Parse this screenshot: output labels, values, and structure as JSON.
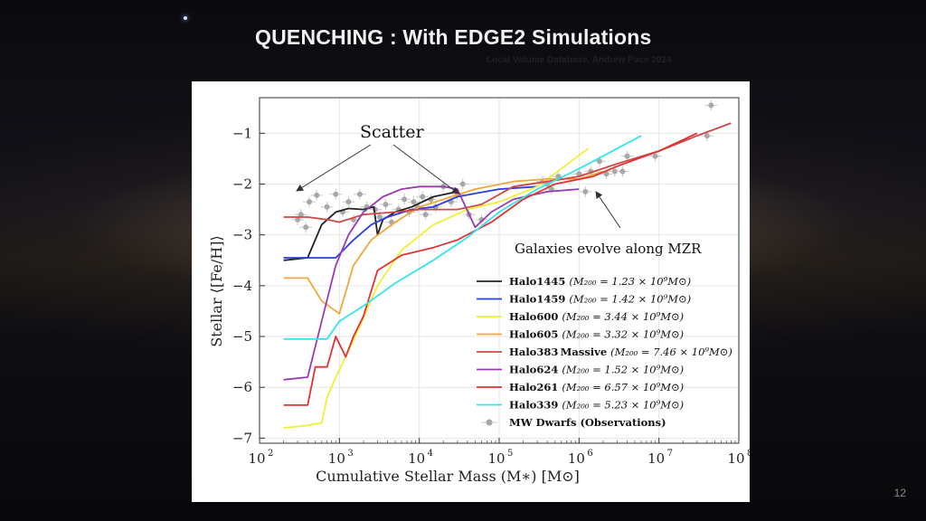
{
  "slide": {
    "title": "QUENCHING : With EDGE2 Simulations",
    "subtitle": "Local Volume Database, Andrew Pace 2024",
    "page_number": "12"
  },
  "chart_data": {
    "type": "line",
    "xlabel": "Cumulative Stellar Mass (M∗) [M⊙]",
    "ylabel": "Stellar ⟨[Fe/H]⟩",
    "xscale": "log",
    "xlim": [
      100,
      100000000
    ],
    "ylim": [
      -7.1,
      -0.3
    ],
    "xticks": [
      {
        "value": 100,
        "base": "10",
        "exp": "2"
      },
      {
        "value": 1000,
        "base": "10",
        "exp": "3"
      },
      {
        "value": 10000,
        "base": "10",
        "exp": "4"
      },
      {
        "value": 100000,
        "base": "10",
        "exp": "5"
      },
      {
        "value": 1000000,
        "base": "10",
        "exp": "6"
      },
      {
        "value": 10000000,
        "base": "10",
        "exp": "7"
      },
      {
        "value": 100000000,
        "base": "10",
        "exp": "8"
      }
    ],
    "yticks": [
      {
        "value": -1,
        "label": "−1"
      },
      {
        "value": -2,
        "label": "−2"
      },
      {
        "value": -3,
        "label": "−3"
      },
      {
        "value": -4,
        "label": "−4"
      },
      {
        "value": -5,
        "label": "−5"
      },
      {
        "value": -6,
        "label": "−6"
      },
      {
        "value": -7,
        "label": "−7"
      }
    ],
    "grid": true,
    "legend_position": "lower-right",
    "series": [
      {
        "name": "Halo1445",
        "mass": "1.23",
        "color": "#222222",
        "points": [
          [
            200,
            -3.5
          ],
          [
            400,
            -3.45
          ],
          [
            600,
            -2.8
          ],
          [
            900,
            -2.55
          ],
          [
            1300,
            -2.48
          ],
          [
            2000,
            -2.5
          ],
          [
            2700,
            -2.45
          ],
          [
            3000,
            -3.0
          ],
          [
            3500,
            -2.7
          ],
          [
            5000,
            -2.55
          ],
          [
            8000,
            -2.45
          ],
          [
            15000,
            -2.25
          ],
          [
            30000,
            -2.15
          ]
        ]
      },
      {
        "name": "Halo1459",
        "mass": "1.42",
        "color": "#2a3fe0",
        "points": [
          [
            200,
            -3.45
          ],
          [
            900,
            -3.45
          ],
          [
            1500,
            -3.1
          ],
          [
            2500,
            -2.8
          ],
          [
            4000,
            -2.65
          ],
          [
            8000,
            -2.5
          ],
          [
            15000,
            -2.45
          ],
          [
            30000,
            -2.25
          ],
          [
            100000,
            -2.1
          ],
          [
            300000,
            -2.05
          ]
        ]
      },
      {
        "name": "Halo600",
        "mass": "3.44",
        "color": "#f0f036",
        "points": [
          [
            200,
            -6.8
          ],
          [
            400,
            -6.75
          ],
          [
            600,
            -6.7
          ],
          [
            700,
            -6.2
          ],
          [
            900,
            -5.8
          ],
          [
            1200,
            -5.4
          ],
          [
            1800,
            -4.8
          ],
          [
            3000,
            -4.0
          ],
          [
            6000,
            -3.3
          ],
          [
            15000,
            -2.8
          ],
          [
            40000,
            -2.5
          ],
          [
            100000,
            -2.35
          ],
          [
            300000,
            -2.05
          ],
          [
            800000,
            -1.55
          ],
          [
            1300000,
            -1.3
          ]
        ]
      },
      {
        "name": "Halo605",
        "mass": "3.32",
        "color": "#f0a83a",
        "points": [
          [
            200,
            -3.85
          ],
          [
            400,
            -3.85
          ],
          [
            600,
            -4.3
          ],
          [
            1000,
            -4.55
          ],
          [
            1500,
            -3.6
          ],
          [
            2500,
            -3.1
          ],
          [
            5000,
            -2.75
          ],
          [
            10000,
            -2.45
          ],
          [
            20000,
            -2.3
          ],
          [
            50000,
            -2.1
          ],
          [
            150000,
            -1.95
          ],
          [
            400000,
            -1.9
          ],
          [
            1000000,
            -1.9
          ],
          [
            2000000,
            -1.75
          ]
        ]
      },
      {
        "name": "Halo383_Massive",
        "mass": "7.46",
        "color": "#d04848",
        "points": [
          [
            200,
            -2.65
          ],
          [
            400,
            -2.65
          ],
          [
            700,
            -2.7
          ],
          [
            1000,
            -2.75
          ],
          [
            2000,
            -2.6
          ],
          [
            5000,
            -2.55
          ],
          [
            10000,
            -2.5
          ],
          [
            30000,
            -2.5
          ],
          [
            60000,
            -2.4
          ],
          [
            150000,
            -2.05
          ],
          [
            400000,
            -1.95
          ],
          [
            1000000,
            -1.85
          ],
          [
            3000000,
            -1.6
          ],
          [
            10000000,
            -1.35
          ],
          [
            30000000,
            -1.05
          ],
          [
            80000000,
            -0.8
          ]
        ]
      },
      {
        "name": "Halo624",
        "mass": "1.52",
        "color": "#9a3ab0",
        "points": [
          [
            200,
            -5.85
          ],
          [
            400,
            -5.8
          ],
          [
            600,
            -4.7
          ],
          [
            900,
            -3.6
          ],
          [
            1300,
            -3.0
          ],
          [
            2000,
            -2.55
          ],
          [
            3500,
            -2.25
          ],
          [
            6000,
            -2.1
          ],
          [
            10000,
            -2.05
          ],
          [
            20000,
            -2.05
          ],
          [
            30000,
            -2.1
          ],
          [
            50000,
            -2.85
          ],
          [
            80000,
            -2.55
          ],
          [
            150000,
            -2.3
          ],
          [
            400000,
            -2.15
          ],
          [
            1000000,
            -2.1
          ]
        ]
      },
      {
        "name": "Halo261",
        "mass": "6.57",
        "color": "#e03232",
        "points": [
          [
            200,
            -6.35
          ],
          [
            400,
            -6.35
          ],
          [
            500,
            -5.6
          ],
          [
            700,
            -5.6
          ],
          [
            900,
            -5.0
          ],
          [
            1200,
            -5.4
          ],
          [
            1500,
            -5.0
          ],
          [
            2000,
            -4.6
          ],
          [
            3000,
            -3.7
          ],
          [
            6000,
            -3.4
          ],
          [
            15000,
            -3.25
          ],
          [
            30000,
            -3.1
          ],
          [
            80000,
            -2.75
          ],
          [
            200000,
            -2.3
          ],
          [
            500000,
            -2.0
          ],
          [
            1500000,
            -1.85
          ],
          [
            3000000,
            -1.65
          ],
          [
            10000000,
            -1.35
          ],
          [
            30000000,
            -1.0
          ]
        ]
      },
      {
        "name": "Halo339",
        "mass": "5.23",
        "color": "#33e6ee",
        "points": [
          [
            200,
            -5.05
          ],
          [
            700,
            -5.05
          ],
          [
            1000,
            -4.7
          ],
          [
            2000,
            -4.4
          ],
          [
            5000,
            -3.95
          ],
          [
            15000,
            -3.5
          ],
          [
            40000,
            -3.05
          ],
          [
            100000,
            -2.55
          ],
          [
            300000,
            -2.1
          ],
          [
            1000000,
            -1.7
          ],
          [
            3000000,
            -1.3
          ],
          [
            6000000,
            -1.05
          ]
        ]
      }
    ],
    "observations": {
      "name": "MW Dwarfs (Observations)",
      "color": "#a8a8a8",
      "points": [
        [
          300,
          -2.7
        ],
        [
          330,
          -2.6
        ],
        [
          380,
          -2.85
        ],
        [
          420,
          -2.35
        ],
        [
          520,
          -2.22
        ],
        [
          700,
          -2.45
        ],
        [
          900,
          -2.2
        ],
        [
          1100,
          -2.55
        ],
        [
          1300,
          -2.35
        ],
        [
          1500,
          -2.7
        ],
        [
          1800,
          -2.2
        ],
        [
          2200,
          -2.45
        ],
        [
          2800,
          -2.5
        ],
        [
          3200,
          -2.65
        ],
        [
          3800,
          -2.4
        ],
        [
          4500,
          -2.75
        ],
        [
          5500,
          -2.5
        ],
        [
          6500,
          -2.3
        ],
        [
          7500,
          -2.55
        ],
        [
          8500,
          -2.35
        ],
        [
          9500,
          -2.45
        ],
        [
          11000,
          -2.25
        ],
        [
          12000,
          -2.6
        ],
        [
          14000,
          -2.3
        ],
        [
          16000,
          -2.45
        ],
        [
          20000,
          -2.05
        ],
        [
          25000,
          -2.35
        ],
        [
          30000,
          -2.2
        ],
        [
          35000,
          -2.0
        ],
        [
          42000,
          -2.6
        ],
        [
          60000,
          -2.7
        ],
        [
          350000,
          -1.95
        ],
        [
          400000,
          -2.0
        ],
        [
          450000,
          -2.1
        ],
        [
          550000,
          -1.85
        ],
        [
          1000000,
          -1.8
        ],
        [
          1200000,
          -2.15
        ],
        [
          1400000,
          -1.75
        ],
        [
          1800000,
          -1.55
        ],
        [
          2200000,
          -1.8
        ],
        [
          2800000,
          -1.75
        ],
        [
          3500000,
          -1.75
        ],
        [
          4000000,
          -1.45
        ],
        [
          9000000,
          -1.45
        ],
        [
          40000000,
          -1.05
        ],
        [
          45000000,
          -0.45
        ]
      ]
    },
    "annotations": [
      {
        "text": "Scatter"
      },
      {
        "text": "Galaxies evolve along MZR"
      }
    ]
  }
}
